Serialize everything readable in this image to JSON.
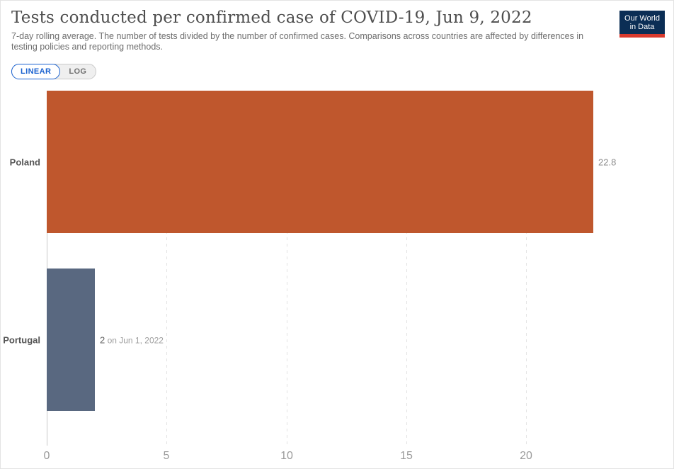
{
  "header": {
    "title": "Tests conducted per confirmed case of COVID-19, Jun 9, 2022",
    "subtitle": "7-day rolling average. The number of tests divided by the number of confirmed cases. Comparisons across countries are affected by differences in testing policies and reporting methods."
  },
  "logo": {
    "line1": "Our World",
    "line2": "in Data",
    "bg_color": "#0b2e55",
    "accent_color": "#d93a2d"
  },
  "toggle": {
    "linear_label": "LINEAR",
    "log_label": "LOG",
    "active": "LINEAR",
    "active_color": "#1a62d0"
  },
  "chart_data": {
    "type": "bar",
    "orientation": "horizontal",
    "title": "Tests conducted per confirmed case of COVID-19, Jun 9, 2022",
    "categories": [
      "Poland",
      "Portugal"
    ],
    "values": [
      22.8,
      2
    ],
    "value_labels": [
      "22.8",
      "2"
    ],
    "value_notes": [
      "",
      "on Jun 1, 2022"
    ],
    "bar_colors": [
      "#bf572d",
      "#596880"
    ],
    "xticks": [
      0,
      5,
      10,
      15,
      20
    ],
    "xlim": [
      0,
      25.8
    ],
    "grid": "dashed-vertical",
    "legend": "none"
  }
}
